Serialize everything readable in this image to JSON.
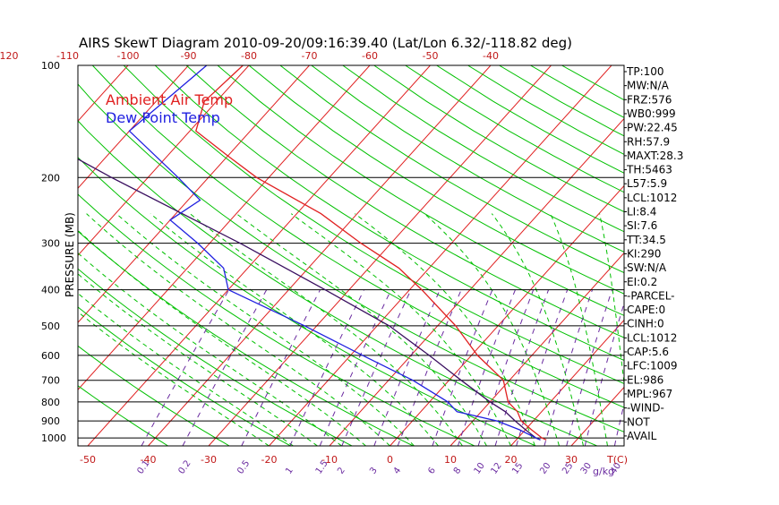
{
  "chart_data": {
    "type": "line",
    "title": "AIRS SkewT Diagram 2010-09-20/09:16:39.40 (Lat/Lon 6.32/-118.82 deg)",
    "ylabel": "PRESSURE (MB)",
    "xlabel": "T(C)",
    "mixing_ratio_label": "g/kg",
    "y_scale": "log",
    "ylim": [
      1050,
      100
    ],
    "xlim_bottom": [
      -50,
      40
    ],
    "pressure_ticks": [
      100,
      200,
      300,
      400,
      500,
      600,
      700,
      800,
      900,
      1000
    ],
    "top_temp_ticks": [
      -120,
      -110,
      -100,
      -90,
      -80,
      -70,
      -60,
      -50,
      -40
    ],
    "bottom_temp_ticks": [
      -50,
      -40,
      -30,
      -20,
      -10,
      0,
      10,
      20,
      30
    ],
    "mixing_ratio_ticks": [
      "0.1",
      "0.2",
      "0.5",
      "1",
      "1.5",
      "2",
      "3",
      "4",
      "6",
      "8",
      "10",
      "12",
      "15",
      "20",
      "25",
      "30",
      "40"
    ],
    "grid": true,
    "legend": {
      "position": "top-left",
      "entries": [
        {
          "label": "Ambient Air Temp",
          "color": "#e02020"
        },
        {
          "label": "Dew Point Temp",
          "color": "#2020e0"
        }
      ]
    },
    "colors": {
      "isotherm": "#e02020",
      "dry_adiabat": "#00c000",
      "moist_adiabat": "#00c000",
      "mixing_ratio": "#6a2ba0",
      "parcel": "#3a1060"
    },
    "series": [
      {
        "name": "Ambient Air Temp",
        "color": "#e02020",
        "points": [
          {
            "p": 100,
            "t": -81
          },
          {
            "p": 125,
            "t": -82
          },
          {
            "p": 150,
            "t": -79
          },
          {
            "p": 175,
            "t": -70
          },
          {
            "p": 200,
            "t": -62
          },
          {
            "p": 250,
            "t": -46
          },
          {
            "p": 300,
            "t": -35
          },
          {
            "p": 350,
            "t": -25
          },
          {
            "p": 400,
            "t": -18
          },
          {
            "p": 500,
            "t": -7
          },
          {
            "p": 600,
            "t": 1
          },
          {
            "p": 700,
            "t": 9
          },
          {
            "p": 800,
            "t": 13
          },
          {
            "p": 850,
            "t": 16
          },
          {
            "p": 900,
            "t": 18
          },
          {
            "p": 950,
            "t": 21
          },
          {
            "p": 1000,
            "t": 24
          },
          {
            "p": 1012,
            "t": 25
          }
        ]
      },
      {
        "name": "Dew Point Temp",
        "color": "#2020e0",
        "points": [
          {
            "p": 100,
            "t": -87
          },
          {
            "p": 150,
            "t": -90
          },
          {
            "p": 200,
            "t": -75
          },
          {
            "p": 230,
            "t": -68
          },
          {
            "p": 260,
            "t": -70
          },
          {
            "p": 300,
            "t": -62
          },
          {
            "p": 350,
            "t": -54
          },
          {
            "p": 400,
            "t": -50
          },
          {
            "p": 500,
            "t": -32
          },
          {
            "p": 600,
            "t": -18
          },
          {
            "p": 700,
            "t": -6
          },
          {
            "p": 800,
            "t": 3
          },
          {
            "p": 850,
            "t": 6
          },
          {
            "p": 900,
            "t": 14
          },
          {
            "p": 950,
            "t": 19
          },
          {
            "p": 1000,
            "t": 23
          },
          {
            "p": 1012,
            "t": 24
          }
        ]
      },
      {
        "name": "Parcel",
        "color": "#3a1060",
        "points": [
          {
            "p": 1012,
            "t": 24
          },
          {
            "p": 1000,
            "t": 23
          },
          {
            "p": 950,
            "t": 20
          },
          {
            "p": 900,
            "t": 17
          },
          {
            "p": 850,
            "t": 14
          },
          {
            "p": 800,
            "t": 10
          },
          {
            "p": 700,
            "t": 2
          },
          {
            "p": 600,
            "t": -7
          },
          {
            "p": 500,
            "t": -18
          },
          {
            "p": 400,
            "t": -34
          },
          {
            "p": 300,
            "t": -55
          },
          {
            "p": 200,
            "t": -86
          },
          {
            "p": 150,
            "t": -107
          },
          {
            "p": 100,
            "t": -127
          }
        ]
      }
    ],
    "indices": [
      "TP:100",
      "MW:N/A",
      "FRZ:576",
      "WB0:999",
      "PW:22.45",
      "RH:57.9",
      "MAXT:28.3",
      "TH:5463",
      "L57:5.9",
      "LCL:1012",
      "LI:8.4",
      "SI:7.6",
      "TT:34.5",
      "KI:290",
      "SW:N/A",
      "EI:0.2",
      "-PARCEL-",
      "CAPE:0",
      "CINH:0",
      "LCL:1012",
      "CAP:5.6",
      "LFC:1009",
      "EL:986",
      "MPL:967",
      "-WIND-",
      "NOT",
      "AVAIL"
    ]
  }
}
